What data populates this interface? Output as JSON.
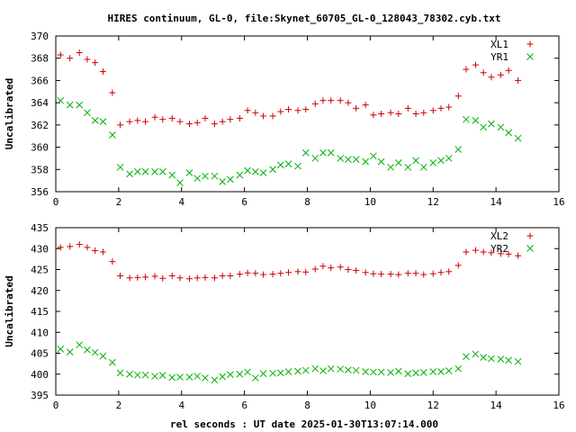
{
  "title": "HIRES continuum, GL-0, file:Skynet_60705_GL-0_128043_78302.cyb.txt",
  "xlabel": "rel seconds : UT date 2025-01-30T13:07:14.000",
  "colors": {
    "red": "#cc0000",
    "green": "#00b000"
  },
  "chart_data": [
    {
      "type": "scatter",
      "ylabel": "Uncalibrated",
      "xlim": [
        0,
        16
      ],
      "ylim": [
        356,
        370
      ],
      "xticks": [
        0,
        2,
        4,
        6,
        8,
        10,
        12,
        14,
        16
      ],
      "yticks": [
        356,
        358,
        360,
        362,
        364,
        366,
        368,
        370
      ],
      "legend_position": "top-right",
      "series": [
        {
          "name": "XL1",
          "marker": "+",
          "color": "#cc0000",
          "x": [
            0.15,
            0.45,
            0.75,
            1.0,
            1.25,
            1.5,
            1.8,
            2.05,
            2.35,
            2.6,
            2.85,
            3.15,
            3.4,
            3.7,
            3.95,
            4.25,
            4.5,
            4.75,
            5.05,
            5.3,
            5.55,
            5.85,
            6.1,
            6.35,
            6.6,
            6.9,
            7.15,
            7.4,
            7.7,
            7.95,
            8.25,
            8.5,
            8.75,
            9.05,
            9.3,
            9.55,
            9.85,
            10.1,
            10.35,
            10.65,
            10.9,
            11.2,
            11.45,
            11.7,
            12.0,
            12.25,
            12.5,
            12.8,
            13.05,
            13.35,
            13.6,
            13.85,
            14.15,
            14.4,
            14.7
          ],
          "y": [
            368.3,
            368.0,
            368.5,
            367.9,
            367.6,
            366.8,
            364.9,
            362.0,
            362.3,
            362.4,
            362.3,
            362.7,
            362.5,
            362.6,
            362.3,
            362.1,
            362.2,
            362.6,
            362.1,
            362.3,
            362.5,
            362.6,
            363.3,
            363.1,
            362.8,
            362.8,
            363.2,
            363.4,
            363.3,
            363.4,
            363.9,
            364.2,
            364.2,
            364.2,
            364.0,
            363.5,
            363.8,
            362.9,
            363.0,
            363.1,
            363.0,
            363.5,
            363.0,
            363.1,
            363.3,
            363.5,
            363.6,
            364.6,
            367.0,
            367.4,
            366.7,
            366.3,
            366.5,
            366.9,
            366.0
          ]
        },
        {
          "name": "YR1",
          "marker": "x",
          "color": "#00b000",
          "x": [
            0.15,
            0.45,
            0.75,
            1.0,
            1.25,
            1.5,
            1.8,
            2.05,
            2.35,
            2.6,
            2.85,
            3.15,
            3.4,
            3.7,
            3.95,
            4.25,
            4.5,
            4.75,
            5.05,
            5.3,
            5.55,
            5.85,
            6.1,
            6.35,
            6.6,
            6.9,
            7.15,
            7.4,
            7.7,
            7.95,
            8.25,
            8.5,
            8.75,
            9.05,
            9.3,
            9.55,
            9.85,
            10.1,
            10.35,
            10.65,
            10.9,
            11.2,
            11.45,
            11.7,
            12.0,
            12.25,
            12.5,
            12.8,
            13.05,
            13.35,
            13.6,
            13.85,
            14.15,
            14.4,
            14.7
          ],
          "y": [
            364.2,
            363.8,
            363.8,
            363.1,
            362.4,
            362.3,
            361.1,
            358.2,
            357.6,
            357.8,
            357.8,
            357.8,
            357.8,
            357.5,
            356.8,
            357.7,
            357.2,
            357.4,
            357.4,
            356.9,
            357.1,
            357.5,
            357.9,
            357.8,
            357.7,
            358.0,
            358.4,
            358.5,
            358.3,
            359.5,
            359.0,
            359.5,
            359.5,
            359.0,
            358.9,
            358.9,
            358.7,
            359.2,
            358.7,
            358.2,
            358.6,
            358.2,
            358.8,
            358.2,
            358.6,
            358.8,
            359.0,
            359.8,
            362.5,
            362.4,
            361.8,
            362.1,
            361.8,
            361.3,
            360.8
          ]
        }
      ]
    },
    {
      "type": "scatter",
      "ylabel": "Uncalibrated",
      "xlim": [
        0,
        16
      ],
      "ylim": [
        395,
        435
      ],
      "xticks": [
        0,
        2,
        4,
        6,
        8,
        10,
        12,
        14,
        16
      ],
      "yticks": [
        395,
        400,
        405,
        410,
        415,
        420,
        425,
        430,
        435
      ],
      "legend_position": "top-right",
      "series": [
        {
          "name": "XL2",
          "marker": "+",
          "color": "#cc0000",
          "x": [
            0.15,
            0.45,
            0.75,
            1.0,
            1.25,
            1.5,
            1.8,
            2.05,
            2.35,
            2.6,
            2.85,
            3.15,
            3.4,
            3.7,
            3.95,
            4.25,
            4.5,
            4.75,
            5.05,
            5.3,
            5.55,
            5.85,
            6.1,
            6.35,
            6.6,
            6.9,
            7.15,
            7.4,
            7.7,
            7.95,
            8.25,
            8.5,
            8.75,
            9.05,
            9.3,
            9.55,
            9.85,
            10.1,
            10.35,
            10.65,
            10.9,
            11.2,
            11.45,
            11.7,
            12.0,
            12.25,
            12.5,
            12.8,
            13.05,
            13.35,
            13.6,
            13.85,
            14.15,
            14.4,
            14.7
          ],
          "y": [
            430.3,
            430.5,
            431.0,
            430.3,
            429.5,
            429.2,
            426.9,
            423.5,
            423.0,
            423.1,
            423.2,
            423.4,
            422.9,
            423.5,
            423.0,
            422.8,
            423.0,
            423.1,
            423.0,
            423.5,
            423.5,
            423.9,
            424.2,
            424.1,
            423.8,
            423.9,
            424.1,
            424.3,
            424.5,
            424.4,
            425.1,
            425.8,
            425.4,
            425.6,
            425.0,
            424.8,
            424.3,
            424.0,
            423.9,
            423.9,
            423.8,
            424.1,
            424.1,
            423.8,
            424.0,
            424.3,
            424.5,
            426.0,
            429.2,
            429.6,
            429.2,
            429.0,
            428.8,
            428.7,
            428.3
          ]
        },
        {
          "name": "YR2",
          "marker": "x",
          "color": "#00b000",
          "x": [
            0.15,
            0.45,
            0.75,
            1.0,
            1.25,
            1.5,
            1.8,
            2.05,
            2.35,
            2.6,
            2.85,
            3.15,
            3.4,
            3.7,
            3.95,
            4.25,
            4.5,
            4.75,
            5.05,
            5.3,
            5.55,
            5.85,
            6.1,
            6.35,
            6.6,
            6.9,
            7.15,
            7.4,
            7.7,
            7.95,
            8.25,
            8.5,
            8.75,
            9.05,
            9.3,
            9.55,
            9.85,
            10.1,
            10.35,
            10.65,
            10.9,
            11.2,
            11.45,
            11.7,
            12.0,
            12.25,
            12.5,
            12.8,
            13.05,
            13.35,
            13.6,
            13.85,
            14.15,
            14.4,
            14.7
          ],
          "y": [
            406.0,
            405.3,
            407.0,
            405.8,
            405.2,
            404.3,
            402.8,
            400.3,
            400.0,
            399.8,
            399.8,
            399.5,
            399.7,
            399.2,
            399.3,
            399.3,
            399.5,
            399.1,
            398.6,
            399.4,
            399.9,
            400.0,
            400.5,
            399.1,
            400.1,
            400.2,
            400.3,
            400.6,
            400.7,
            400.9,
            401.3,
            400.8,
            401.3,
            401.2,
            401.0,
            400.9,
            400.6,
            400.5,
            400.5,
            400.4,
            400.7,
            400.1,
            400.3,
            400.4,
            400.6,
            400.6,
            400.8,
            401.3,
            404.2,
            404.8,
            404.0,
            403.7,
            403.6,
            403.3,
            403.0
          ]
        }
      ]
    }
  ]
}
